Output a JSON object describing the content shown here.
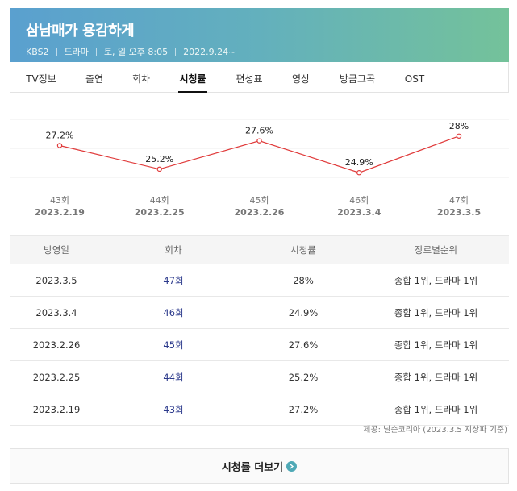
{
  "header": {
    "title": "삼남매가 용감하게",
    "channel": "KBS2",
    "genre": "드라마",
    "schedule": "토, 일 오후 8:05",
    "start_date": "2022.9.24~"
  },
  "tabs": [
    {
      "label": "TV정보",
      "active": false
    },
    {
      "label": "출연",
      "active": false
    },
    {
      "label": "회차",
      "active": false
    },
    {
      "label": "시청률",
      "active": true
    },
    {
      "label": "편성표",
      "active": false
    },
    {
      "label": "영상",
      "active": false
    },
    {
      "label": "방금그곡",
      "active": false
    },
    {
      "label": "OST",
      "active": false
    }
  ],
  "chart_data": {
    "type": "line",
    "categories": [
      "43회\n2023.2.19",
      "44회\n2023.2.25",
      "45회\n2023.2.26",
      "46회\n2023.3.4",
      "47회\n2023.3.5"
    ],
    "episodes": [
      "43회",
      "44회",
      "45회",
      "46회",
      "47회"
    ],
    "dates": [
      "2023.2.19",
      "2023.2.25",
      "2023.2.26",
      "2023.3.4",
      "2023.3.5"
    ],
    "values": [
      27.2,
      25.2,
      27.6,
      24.9,
      28
    ],
    "value_labels": [
      "27.2%",
      "25.2%",
      "27.6%",
      "24.9%",
      "28%"
    ],
    "line_color": "#e03a3a"
  },
  "table": {
    "headers": [
      "방영일",
      "회차",
      "시청률",
      "장르별순위"
    ],
    "rows": [
      {
        "date": "2023.3.5",
        "episode": "47회",
        "rating": "28%",
        "rank": "종합 1위, 드라마 1위"
      },
      {
        "date": "2023.3.4",
        "episode": "46회",
        "rating": "24.9%",
        "rank": "종합 1위, 드라마 1위"
      },
      {
        "date": "2023.2.26",
        "episode": "45회",
        "rating": "27.6%",
        "rank": "종합 1위, 드라마 1위"
      },
      {
        "date": "2023.2.25",
        "episode": "44회",
        "rating": "25.2%",
        "rank": "종합 1위, 드라마 1위"
      },
      {
        "date": "2023.2.19",
        "episode": "43회",
        "rating": "27.2%",
        "rank": "종합 1위, 드라마 1위"
      }
    ]
  },
  "source": "제공: 닐슨코리아 (2023.3.5 지상파 기준)",
  "more_button": {
    "label": "시청률 더보기",
    "icon": "chevron-right-icon"
  }
}
